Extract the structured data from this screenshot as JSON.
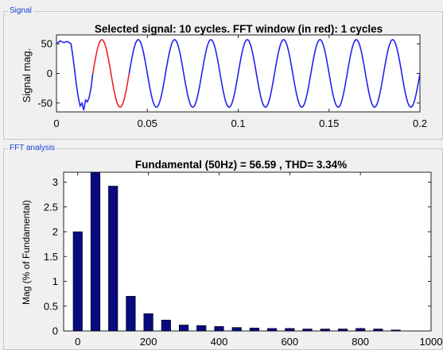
{
  "panels": {
    "signal": "Signal",
    "fft": "FFT analysis"
  },
  "colors": {
    "signal_line": "#2222ee",
    "fft_window": "#ee2222",
    "bars": "#0a0a80",
    "panel_title": "#1a3fd0",
    "plot_bg": "#ffffff"
  },
  "chart_data": [
    {
      "type": "line",
      "title": "Selected signal: 10 cycles. FFT window (in red): 1 cycles",
      "xlabel": "",
      "ylabel": "Signal mag.",
      "xlim": [
        0,
        0.2
      ],
      "ylim": [
        -65,
        65
      ],
      "xticks": [
        "0",
        "0.05",
        "0.1",
        "0.15",
        "0.2"
      ],
      "yticks": [
        "50",
        "0",
        "-50"
      ],
      "grid": false,
      "series": [
        {
          "description": "sine wave 50Hz with startup transient",
          "frequency_hz": 50,
          "amplitude": 57,
          "x": [
            0,
            0.002,
            0.004,
            0.006,
            0.008,
            0.009,
            0.01,
            0.011,
            0.012,
            0.013,
            0.014,
            0.015,
            0.016,
            0.017,
            0.018,
            0.019,
            0.02
          ],
          "y": [
            50,
            55,
            52,
            54,
            50,
            30,
            5,
            -20,
            -40,
            -55,
            -50,
            -62,
            -45,
            -48,
            -40,
            -25,
            0
          ]
        }
      ],
      "highlight": {
        "x_start": 0.02,
        "x_end": 0.04
      }
    },
    {
      "type": "bar",
      "title": "Fundamental (50Hz) = 56.59 , THD= 3.34%",
      "xlabel": "",
      "ylabel": "Mag (% of Fundamental)",
      "xlim": [
        -40,
        1000
      ],
      "ylim": [
        0,
        3.2
      ],
      "xticks": [
        "0",
        "200",
        "400",
        "600",
        "800",
        "1000"
      ],
      "yticks": [
        "0",
        "0.5",
        "1",
        "1.5",
        "2",
        "2.5",
        "3"
      ],
      "grid": false,
      "x": [
        0,
        50,
        100,
        150,
        200,
        250,
        300,
        350,
        400,
        450,
        500,
        550,
        600,
        650,
        700,
        750,
        800,
        850,
        900
      ],
      "values": [
        2.0,
        3.3,
        2.92,
        0.7,
        0.35,
        0.22,
        0.12,
        0.11,
        0.09,
        0.07,
        0.06,
        0.05,
        0.05,
        0.04,
        0.04,
        0.04,
        0.05,
        0.04,
        0.02
      ]
    }
  ]
}
